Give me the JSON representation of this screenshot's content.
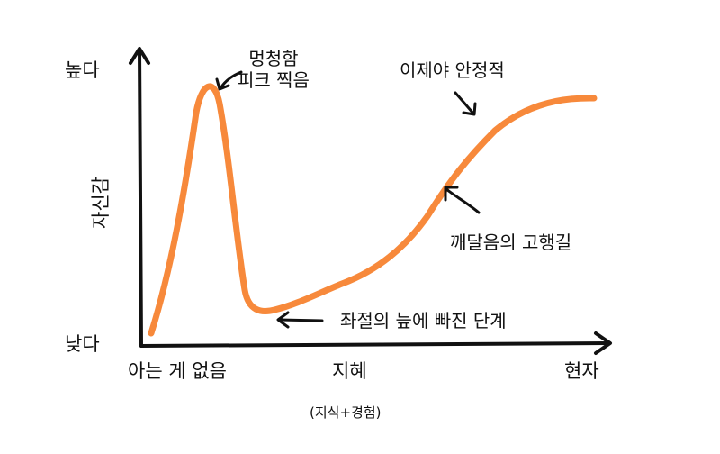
{
  "diagram": {
    "y_axis": {
      "label": "자신감",
      "high": "높다",
      "low": "낮다"
    },
    "x_axis": {
      "label": "지혜",
      "sublabel": "(지식+경험)",
      "start": "아는 게 없음",
      "end": "현자"
    },
    "annotations": {
      "peak_line1": "멍청함",
      "peak_line2": "피크 찍음",
      "valley": "좌절의 늪에 빠진 단계",
      "slope": "깨달음의 고행길",
      "plateau": "이제야 안정적"
    },
    "colors": {
      "curve": "#F7893B",
      "ink": "#111111",
      "background": "#FFFFFF"
    }
  }
}
